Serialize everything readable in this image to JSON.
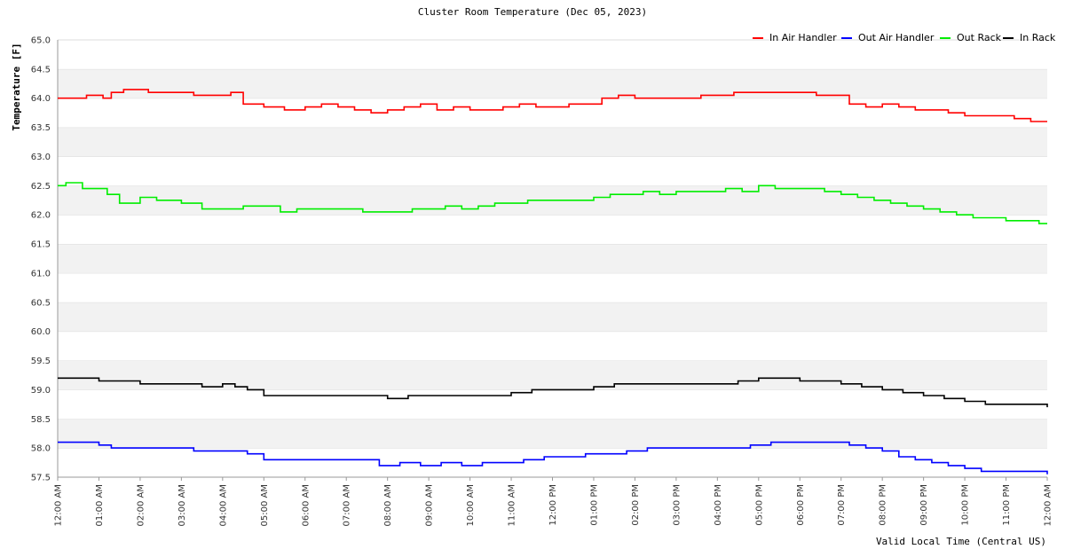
{
  "chart_data": {
    "type": "line",
    "title": "Cluster Room Temperature (Dec 05, 2023)",
    "xlabel": "Valid Local Time (Central US)",
    "ylabel": "Temperature [F]",
    "ylim": [
      57.5,
      65.0
    ],
    "y_ticks": [
      "57.5",
      "58.0",
      "58.5",
      "59.0",
      "59.5",
      "60.0",
      "60.5",
      "61.0",
      "61.5",
      "62.0",
      "62.5",
      "63.0",
      "63.5",
      "64.0",
      "64.5",
      "65.0"
    ],
    "x_ticks": [
      "12:00 AM",
      "01:00 AM",
      "02:00 AM",
      "03:00 AM",
      "04:00 AM",
      "05:00 AM",
      "06:00 AM",
      "07:00 AM",
      "08:00 AM",
      "09:00 AM",
      "10:00 AM",
      "11:00 AM",
      "12:00 PM",
      "01:00 PM",
      "02:00 PM",
      "03:00 PM",
      "04:00 PM",
      "05:00 PM",
      "06:00 PM",
      "07:00 PM",
      "08:00 PM",
      "09:00 PM",
      "10:00 PM",
      "11:00 PM",
      "12:00 AM"
    ],
    "x_unit": "hours since midnight",
    "grid": "horizontal bands",
    "legend_position": "top-right",
    "series": [
      {
        "name": "In Air Handler",
        "color": "#ff0000",
        "x": [
          0,
          0.4,
          0.7,
          1.1,
          1.3,
          1.6,
          2.2,
          2.6,
          3.3,
          3.6,
          4.0,
          4.2,
          4.5,
          5.0,
          5.5,
          6.0,
          6.4,
          6.8,
          7.2,
          7.6,
          8.0,
          8.4,
          8.8,
          9.2,
          9.6,
          10.0,
          10.4,
          10.8,
          11.2,
          11.6,
          12.0,
          12.4,
          12.8,
          13.2,
          13.6,
          14.0,
          14.4,
          14.8,
          15.2,
          15.6,
          16.0,
          16.4,
          16.8,
          17.2,
          17.6,
          18.0,
          18.4,
          18.8,
          19.2,
          19.6,
          20.0,
          20.4,
          20.8,
          21.2,
          21.6,
          22.0,
          22.4,
          22.8,
          23.2,
          23.6,
          24.0
        ],
        "y": [
          64.0,
          64.0,
          64.05,
          64.0,
          64.1,
          64.15,
          64.1,
          64.1,
          64.05,
          64.05,
          64.05,
          64.1,
          63.9,
          63.85,
          63.8,
          63.85,
          63.9,
          63.85,
          63.8,
          63.75,
          63.8,
          63.85,
          63.9,
          63.8,
          63.85,
          63.8,
          63.8,
          63.85,
          63.9,
          63.85,
          63.85,
          63.9,
          63.9,
          64.0,
          64.05,
          64.0,
          64.0,
          64.0,
          64.0,
          64.05,
          64.05,
          64.1,
          64.1,
          64.1,
          64.1,
          64.1,
          64.05,
          64.05,
          63.9,
          63.85,
          63.9,
          63.85,
          63.8,
          63.8,
          63.75,
          63.7,
          63.7,
          63.7,
          63.65,
          63.6,
          63.6
        ]
      },
      {
        "name": "Out Air Handler",
        "color": "#0000ff",
        "x": [
          0,
          0.5,
          1.0,
          1.3,
          1.8,
          2.5,
          3.0,
          3.3,
          3.8,
          4.2,
          4.6,
          5.0,
          5.5,
          6.0,
          6.5,
          7.0,
          7.5,
          7.8,
          8.3,
          8.8,
          9.3,
          9.8,
          10.3,
          10.8,
          11.3,
          11.8,
          12.3,
          12.8,
          13.3,
          13.8,
          14.3,
          14.8,
          15.3,
          15.8,
          16.3,
          16.8,
          17.3,
          17.8,
          18.3,
          18.8,
          19.2,
          19.6,
          20.0,
          20.4,
          20.8,
          21.2,
          21.6,
          22.0,
          22.4,
          22.8,
          23.2,
          23.6,
          24.0
        ],
        "y": [
          58.1,
          58.1,
          58.05,
          58.0,
          58.0,
          58.0,
          58.0,
          57.95,
          57.95,
          57.95,
          57.9,
          57.8,
          57.8,
          57.8,
          57.8,
          57.8,
          57.8,
          57.7,
          57.75,
          57.7,
          57.75,
          57.7,
          57.75,
          57.75,
          57.8,
          57.85,
          57.85,
          57.9,
          57.9,
          57.95,
          58.0,
          58.0,
          58.0,
          58.0,
          58.0,
          58.05,
          58.1,
          58.1,
          58.1,
          58.1,
          58.05,
          58.0,
          57.95,
          57.85,
          57.8,
          57.75,
          57.7,
          57.65,
          57.6,
          57.6,
          57.6,
          57.6,
          57.55
        ]
      },
      {
        "name": "Out Rack",
        "color": "#00ee00",
        "x": [
          0,
          0.2,
          0.6,
          1.2,
          1.5,
          2.0,
          2.4,
          3.0,
          3.5,
          4.0,
          4.5,
          5.0,
          5.4,
          5.8,
          6.2,
          6.6,
          7.0,
          7.4,
          7.8,
          8.2,
          8.6,
          9.0,
          9.4,
          9.8,
          10.2,
          10.6,
          11.0,
          11.4,
          11.8,
          12.2,
          12.6,
          13.0,
          13.4,
          13.8,
          14.2,
          14.6,
          15.0,
          15.4,
          15.8,
          16.2,
          16.6,
          17.0,
          17.4,
          17.8,
          18.2,
          18.6,
          19.0,
          19.4,
          19.8,
          20.2,
          20.6,
          21.0,
          21.4,
          21.8,
          22.2,
          22.6,
          23.0,
          23.4,
          23.8,
          24.0
        ],
        "y": [
          62.5,
          62.55,
          62.45,
          62.35,
          62.2,
          62.3,
          62.25,
          62.2,
          62.1,
          62.1,
          62.15,
          62.15,
          62.05,
          62.1,
          62.1,
          62.1,
          62.1,
          62.05,
          62.05,
          62.05,
          62.1,
          62.1,
          62.15,
          62.1,
          62.15,
          62.2,
          62.2,
          62.25,
          62.25,
          62.25,
          62.25,
          62.3,
          62.35,
          62.35,
          62.4,
          62.35,
          62.4,
          62.4,
          62.4,
          62.45,
          62.4,
          62.5,
          62.45,
          62.45,
          62.45,
          62.4,
          62.35,
          62.3,
          62.25,
          62.2,
          62.15,
          62.1,
          62.05,
          62.0,
          61.95,
          61.95,
          61.9,
          61.9,
          61.85,
          61.85
        ]
      },
      {
        "name": "In Rack",
        "color": "#000000",
        "x": [
          0,
          0.5,
          1.0,
          1.5,
          2.0,
          2.5,
          3.0,
          3.5,
          4.0,
          4.3,
          4.6,
          5.0,
          5.5,
          6.0,
          6.5,
          7.0,
          7.5,
          8.0,
          8.5,
          9.0,
          9.5,
          10.0,
          10.5,
          11.0,
          11.5,
          12.0,
          12.5,
          13.0,
          13.5,
          14.0,
          14.5,
          15.0,
          15.5,
          16.0,
          16.5,
          17.0,
          17.5,
          18.0,
          18.5,
          19.0,
          19.5,
          20.0,
          20.5,
          21.0,
          21.5,
          22.0,
          22.5,
          23.0,
          23.5,
          24.0
        ],
        "y": [
          59.2,
          59.2,
          59.15,
          59.15,
          59.1,
          59.1,
          59.1,
          59.05,
          59.1,
          59.05,
          59.0,
          58.9,
          58.9,
          58.9,
          58.9,
          58.9,
          58.9,
          58.85,
          58.9,
          58.9,
          58.9,
          58.9,
          58.9,
          58.95,
          59.0,
          59.0,
          59.0,
          59.05,
          59.1,
          59.1,
          59.1,
          59.1,
          59.1,
          59.1,
          59.15,
          59.2,
          59.2,
          59.15,
          59.15,
          59.1,
          59.05,
          59.0,
          58.95,
          58.9,
          58.85,
          58.8,
          58.75,
          58.75,
          58.75,
          58.7
        ]
      }
    ]
  }
}
